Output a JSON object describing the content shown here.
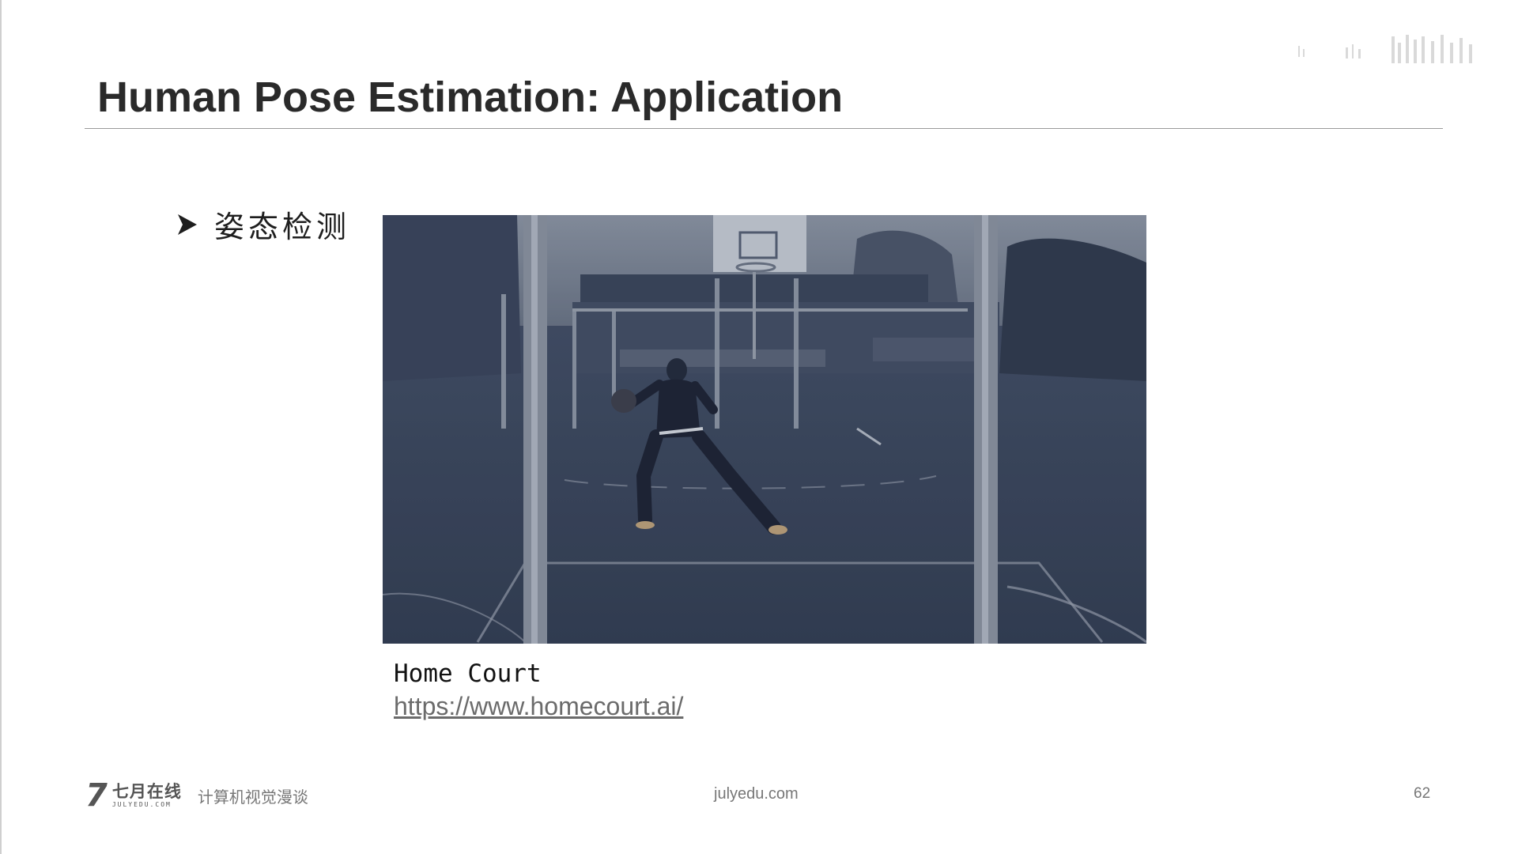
{
  "slide": {
    "title": "Human Pose Estimation: Application",
    "bullet": {
      "icon": "arrowhead-bullet-icon",
      "text": "姿态检测"
    },
    "media": {
      "description_icon": "basketball-court-video-frame",
      "caption_name": "Home Court",
      "caption_link": "https://www.homecourt.ai/"
    },
    "footer": {
      "logo_mark": "7",
      "logo_cn": "七月在线",
      "logo_en": "JULYEDU.COM",
      "tagline": "计算机视觉漫谈",
      "site": "julyedu.com",
      "page_number": "62"
    },
    "colors": {
      "title": "#2a2a2a",
      "rule": "#9a9a9a",
      "photo_tint": "#3e4b5f",
      "footer_text": "#777777"
    }
  }
}
